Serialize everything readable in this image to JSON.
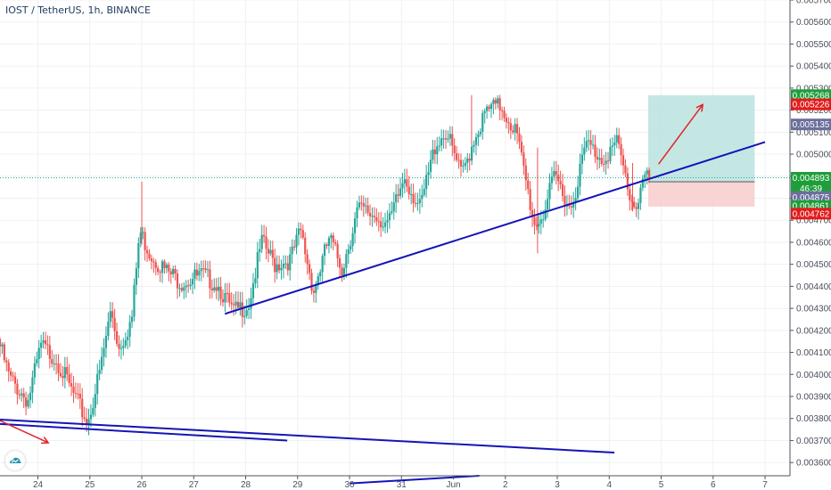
{
  "header": {
    "title": "IOST / TetherUS, 1h, BINANCE"
  },
  "colors": {
    "up": "#26a69a",
    "down": "#ef5350",
    "trend": "#1414b8",
    "arrow": "#e0242a",
    "profit_zone": "#b2dfdb",
    "loss_zone": "#f8cccc",
    "grid": "#eef1f5",
    "green_label": "#1e9e3a",
    "red_label": "#e31b1b",
    "slate_label": "#6b6f9c"
  },
  "icons": {
    "logo": "tradingview-cloud-icon"
  },
  "chart_data": {
    "type": "candlestick",
    "title": "IOST / TetherUS, 1h, BINANCE",
    "ylim": [
      0.00354,
      0.0057
    ],
    "y_ticks": [
      "0.003600",
      "0.003700",
      "0.003800",
      "0.003900",
      "0.004000",
      "0.004100",
      "0.004200",
      "0.004300",
      "0.004400",
      "0.004500",
      "0.004600",
      "0.004700",
      "0.004800",
      "0.004900",
      "0.005000",
      "0.005100",
      "0.005200",
      "0.005300",
      "0.005400",
      "0.005500",
      "0.005600",
      "0.005700"
    ],
    "x_range": [
      23.27,
      7.48
    ],
    "x_ticks": [
      {
        "label": "24",
        "day": 24
      },
      {
        "label": "25",
        "day": 25
      },
      {
        "label": "26",
        "day": 26
      },
      {
        "label": "27",
        "day": 27
      },
      {
        "label": "28",
        "day": 28
      },
      {
        "label": "29",
        "day": 29
      },
      {
        "label": "30",
        "day": 30
      },
      {
        "label": "31",
        "day": 31
      },
      {
        "label": "Jun",
        "day": 32
      },
      {
        "label": "2",
        "day": 33
      },
      {
        "label": "3",
        "day": 34
      },
      {
        "label": "4",
        "day": 35
      },
      {
        "label": "5",
        "day": 36
      },
      {
        "label": "6",
        "day": 37
      },
      {
        "label": "7",
        "day": 38
      }
    ],
    "price_path": [
      [
        23.27,
        0.00416
      ],
      [
        23.5,
        0.00398
      ],
      [
        23.85,
        0.00388
      ],
      [
        24.1,
        0.00413
      ],
      [
        24.4,
        0.00407
      ],
      [
        24.7,
        0.00392
      ],
      [
        25.0,
        0.00378
      ],
      [
        25.25,
        0.00403
      ],
      [
        25.45,
        0.0043
      ],
      [
        25.6,
        0.00412
      ],
      [
        25.85,
        0.00425
      ],
      [
        26.0,
        0.00465
      ],
      [
        26.2,
        0.00455
      ],
      [
        26.5,
        0.00447
      ],
      [
        26.8,
        0.00442
      ],
      [
        27.2,
        0.00445
      ],
      [
        27.5,
        0.00441
      ],
      [
        27.8,
        0.00428
      ],
      [
        28.1,
        0.00432
      ],
      [
        28.35,
        0.0046
      ],
      [
        28.6,
        0.0045
      ],
      [
        28.9,
        0.00452
      ],
      [
        29.1,
        0.00465
      ],
      [
        29.35,
        0.00438
      ],
      [
        29.65,
        0.00462
      ],
      [
        29.9,
        0.00448
      ],
      [
        30.2,
        0.00475
      ],
      [
        30.55,
        0.00472
      ],
      [
        30.8,
        0.00468
      ],
      [
        31.1,
        0.0049
      ],
      [
        31.4,
        0.00475
      ],
      [
        31.7,
        0.00505
      ],
      [
        31.9,
        0.0051
      ],
      [
        32.2,
        0.0049
      ],
      [
        32.45,
        0.00508
      ],
      [
        32.7,
        0.0052
      ],
      [
        32.95,
        0.00522
      ],
      [
        33.25,
        0.0051
      ],
      [
        33.6,
        0.00468
      ],
      [
        33.75,
        0.00472
      ],
      [
        34.0,
        0.0049
      ],
      [
        34.3,
        0.00475
      ],
      [
        34.6,
        0.00505
      ],
      [
        34.9,
        0.00498
      ],
      [
        35.2,
        0.00505
      ],
      [
        35.45,
        0.0048
      ],
      [
        35.55,
        0.00476
      ],
      [
        35.7,
        0.0049
      ],
      [
        35.78,
        0.004886
      ]
    ],
    "wicks": [
      {
        "day": 26.0,
        "high": 0.004875,
        "low": 0.00459
      },
      {
        "day": 32.35,
        "high": 0.005268,
        "low": 0.00504
      },
      {
        "day": 33.62,
        "high": 0.00503,
        "low": 0.00455
      },
      {
        "day": 35.45,
        "high": 0.00496,
        "low": 0.00474
      }
    ],
    "trendlines": [
      {
        "from": [
          27.6,
          0.004275
        ],
        "to": [
          38.0,
          0.005055
        ]
      },
      {
        "from": [
          23.27,
          0.003795
        ],
        "to": [
          35.1,
          0.003645
        ]
      },
      {
        "from": [
          23.27,
          0.003775
        ],
        "to": [
          28.8,
          0.0037
        ]
      },
      {
        "from": [
          30.0,
          0.003505
        ],
        "to": [
          32.5,
          0.00354
        ]
      }
    ],
    "arrows": [
      {
        "from": [
          35.95,
          0.004955
        ],
        "to": [
          36.8,
          0.005225
        ]
      },
      {
        "from": [
          23.27,
          0.00379
        ],
        "to": [
          24.2,
          0.00369
        ]
      }
    ],
    "position_box": {
      "day_start": 35.75,
      "day_end": 37.8,
      "entry": 0.004875,
      "target": 0.005268,
      "stop": 0.004762
    },
    "hline": 0.004893,
    "price_labels": [
      {
        "value": "0.005268",
        "price": 0.005268,
        "color": "green_label"
      },
      {
        "value": "0.005226",
        "price": 0.005226,
        "color": "red_label"
      },
      {
        "value": "0.005135",
        "price": 0.005135,
        "color": "slate_label"
      },
      {
        "value": "0.004893",
        "price": 0.004893,
        "color": "green_label"
      },
      {
        "value": "46:39",
        "price": 0.004845,
        "color": "green_label"
      },
      {
        "value": "0.004875",
        "price": 0.004805,
        "color": "slate_label"
      },
      {
        "value": "0.004861",
        "price": 0.004765,
        "color": "green_label"
      },
      {
        "value": "0.004762",
        "price": 0.00473,
        "color": "red_label"
      }
    ]
  }
}
